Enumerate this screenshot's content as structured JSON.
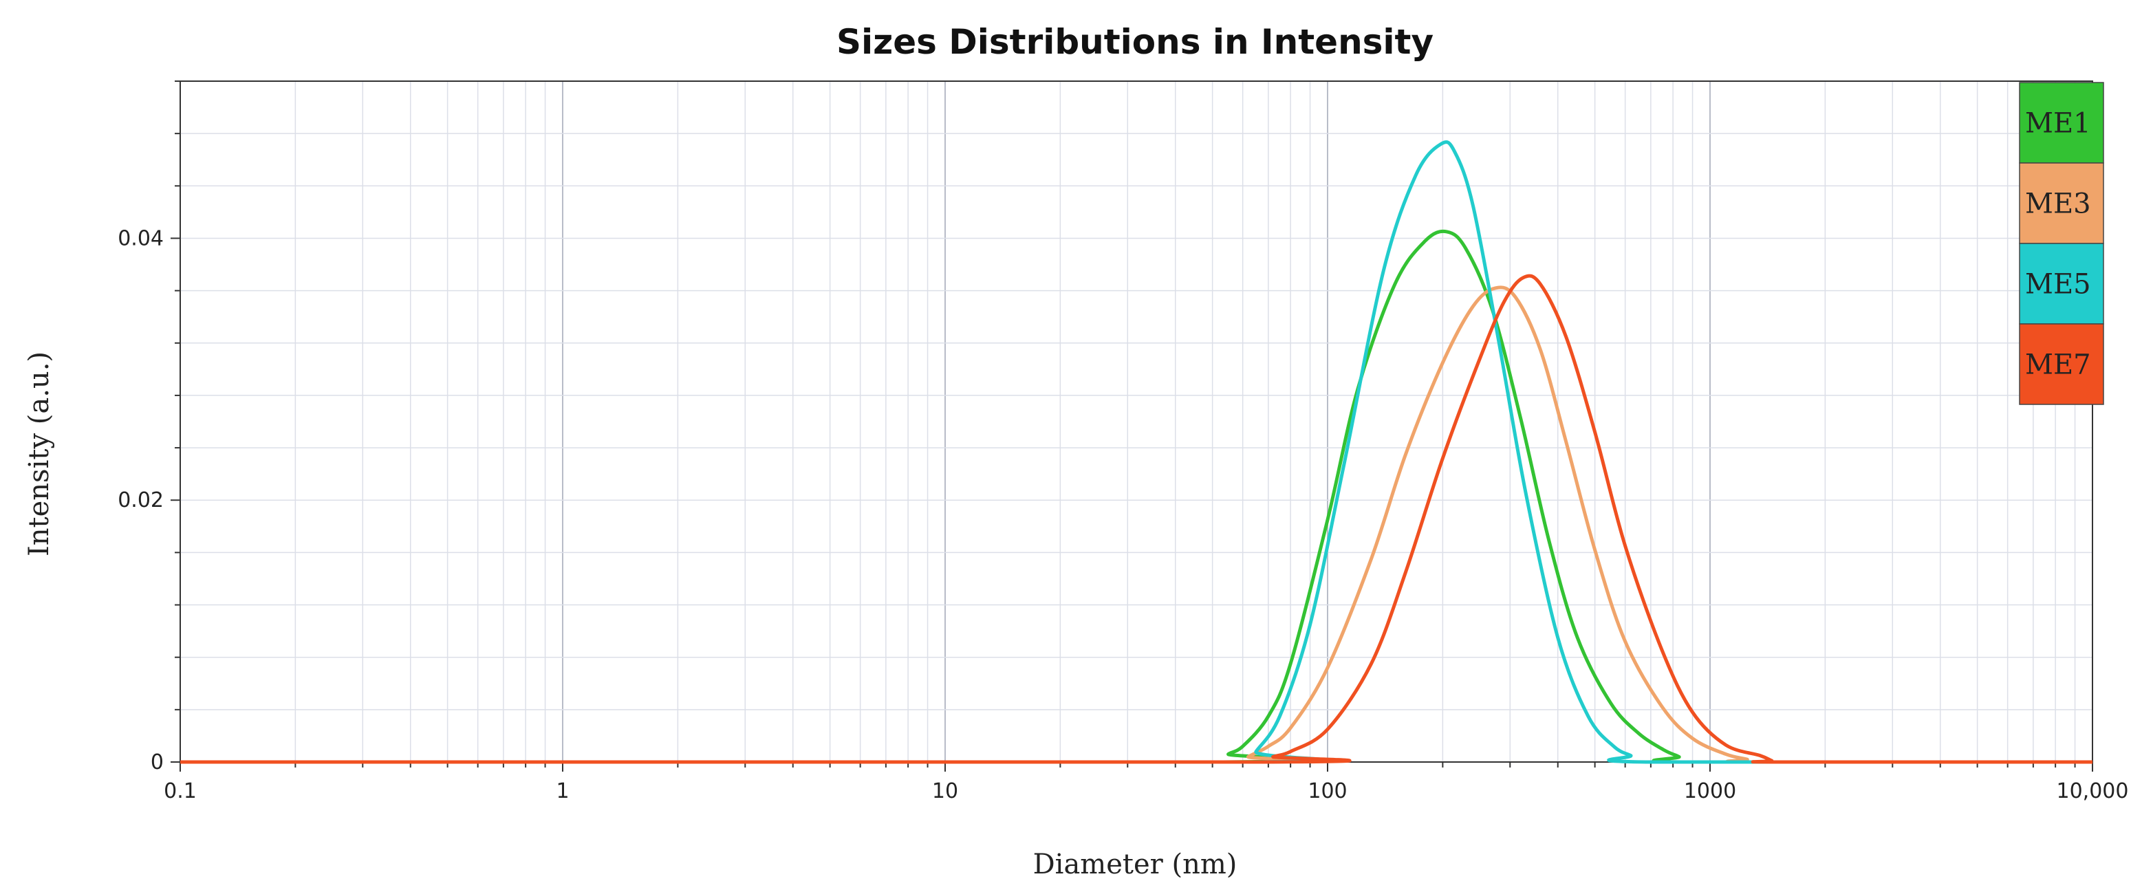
{
  "chart_data": {
    "type": "line",
    "title": "Sizes Distributions in Intensity",
    "xlabel": "Diameter (nm)",
    "ylabel": "Intensity (a.u.)",
    "xscale": "log",
    "xlim": [
      0.1,
      10000
    ],
    "ylim": [
      0,
      0.052
    ],
    "x_ticks": [
      {
        "value": 0.1,
        "label": "0.1"
      },
      {
        "value": 1,
        "label": "1"
      },
      {
        "value": 10,
        "label": "10"
      },
      {
        "value": 100,
        "label": "100"
      },
      {
        "value": 1000,
        "label": "1000"
      },
      {
        "value": 10000,
        "label": "10,000"
      }
    ],
    "y_ticks": [
      {
        "value": 0,
        "label": "0"
      },
      {
        "value": 0.02,
        "label": "0.02"
      },
      {
        "value": 0.04,
        "label": "0.04"
      }
    ],
    "grid": true,
    "legend_position": "top-right",
    "series": [
      {
        "name": "ME1",
        "color": "#33c233",
        "points": [
          [
            0.1,
            0
          ],
          [
            53,
            0
          ],
          [
            55,
            0.0006
          ],
          [
            60,
            0.0012
          ],
          [
            70,
            0.0035
          ],
          [
            80,
            0.0075
          ],
          [
            100,
            0.0185
          ],
          [
            120,
            0.0285
          ],
          [
            150,
            0.0365
          ],
          [
            180,
            0.0398
          ],
          [
            205,
            0.0405
          ],
          [
            230,
            0.0392
          ],
          [
            270,
            0.0345
          ],
          [
            320,
            0.0262
          ],
          [
            380,
            0.0168
          ],
          [
            450,
            0.0095
          ],
          [
            550,
            0.0045
          ],
          [
            650,
            0.0022
          ],
          [
            760,
            0.0009
          ],
          [
            830,
            0.0004
          ],
          [
            860,
            0
          ],
          [
            10000,
            0
          ]
        ]
      },
      {
        "name": "ME3",
        "color": "#f0a46a",
        "points": [
          [
            0.1,
            0
          ],
          [
            60,
            0
          ],
          [
            62,
            0.0004
          ],
          [
            70,
            0.0012
          ],
          [
            80,
            0.0026
          ],
          [
            100,
            0.0072
          ],
          [
            130,
            0.0155
          ],
          [
            160,
            0.0235
          ],
          [
            200,
            0.0305
          ],
          [
            240,
            0.0348
          ],
          [
            275,
            0.0362
          ],
          [
            310,
            0.0355
          ],
          [
            360,
            0.0315
          ],
          [
            420,
            0.0245
          ],
          [
            500,
            0.0162
          ],
          [
            600,
            0.0092
          ],
          [
            750,
            0.0042
          ],
          [
            900,
            0.0018
          ],
          [
            1100,
            0.0006
          ],
          [
            1250,
            0.0002
          ],
          [
            1300,
            0
          ],
          [
            10000,
            0
          ]
        ]
      },
      {
        "name": "ME5",
        "color": "#22cccc",
        "points": [
          [
            0.1,
            0
          ],
          [
            62,
            0
          ],
          [
            65,
            0.0008
          ],
          [
            75,
            0.0035
          ],
          [
            90,
            0.0105
          ],
          [
            110,
            0.0225
          ],
          [
            140,
            0.0375
          ],
          [
            170,
            0.0448
          ],
          [
            198,
            0.0472
          ],
          [
            215,
            0.0466
          ],
          [
            240,
            0.0425
          ],
          [
            280,
            0.0322
          ],
          [
            330,
            0.0205
          ],
          [
            400,
            0.0095
          ],
          [
            480,
            0.0035
          ],
          [
            560,
            0.0012
          ],
          [
            620,
            0.0005
          ],
          [
            680,
            0
          ],
          [
            10000,
            0
          ]
        ]
      },
      {
        "name": "ME7",
        "color": "#f05020",
        "points": [
          [
            0.1,
            0
          ],
          [
            70,
            0
          ],
          [
            72,
            0.0004
          ],
          [
            80,
            0.0008
          ],
          [
            100,
            0.0025
          ],
          [
            130,
            0.0075
          ],
          [
            160,
            0.0145
          ],
          [
            200,
            0.0232
          ],
          [
            250,
            0.0308
          ],
          [
            290,
            0.0352
          ],
          [
            325,
            0.037
          ],
          [
            360,
            0.0365
          ],
          [
            420,
            0.0325
          ],
          [
            500,
            0.0252
          ],
          [
            600,
            0.0165
          ],
          [
            750,
            0.0085
          ],
          [
            900,
            0.0038
          ],
          [
            1100,
            0.0013
          ],
          [
            1350,
            0.0005
          ],
          [
            1450,
            0.0001
          ],
          [
            1500,
            0
          ],
          [
            10000,
            0
          ]
        ]
      }
    ]
  }
}
